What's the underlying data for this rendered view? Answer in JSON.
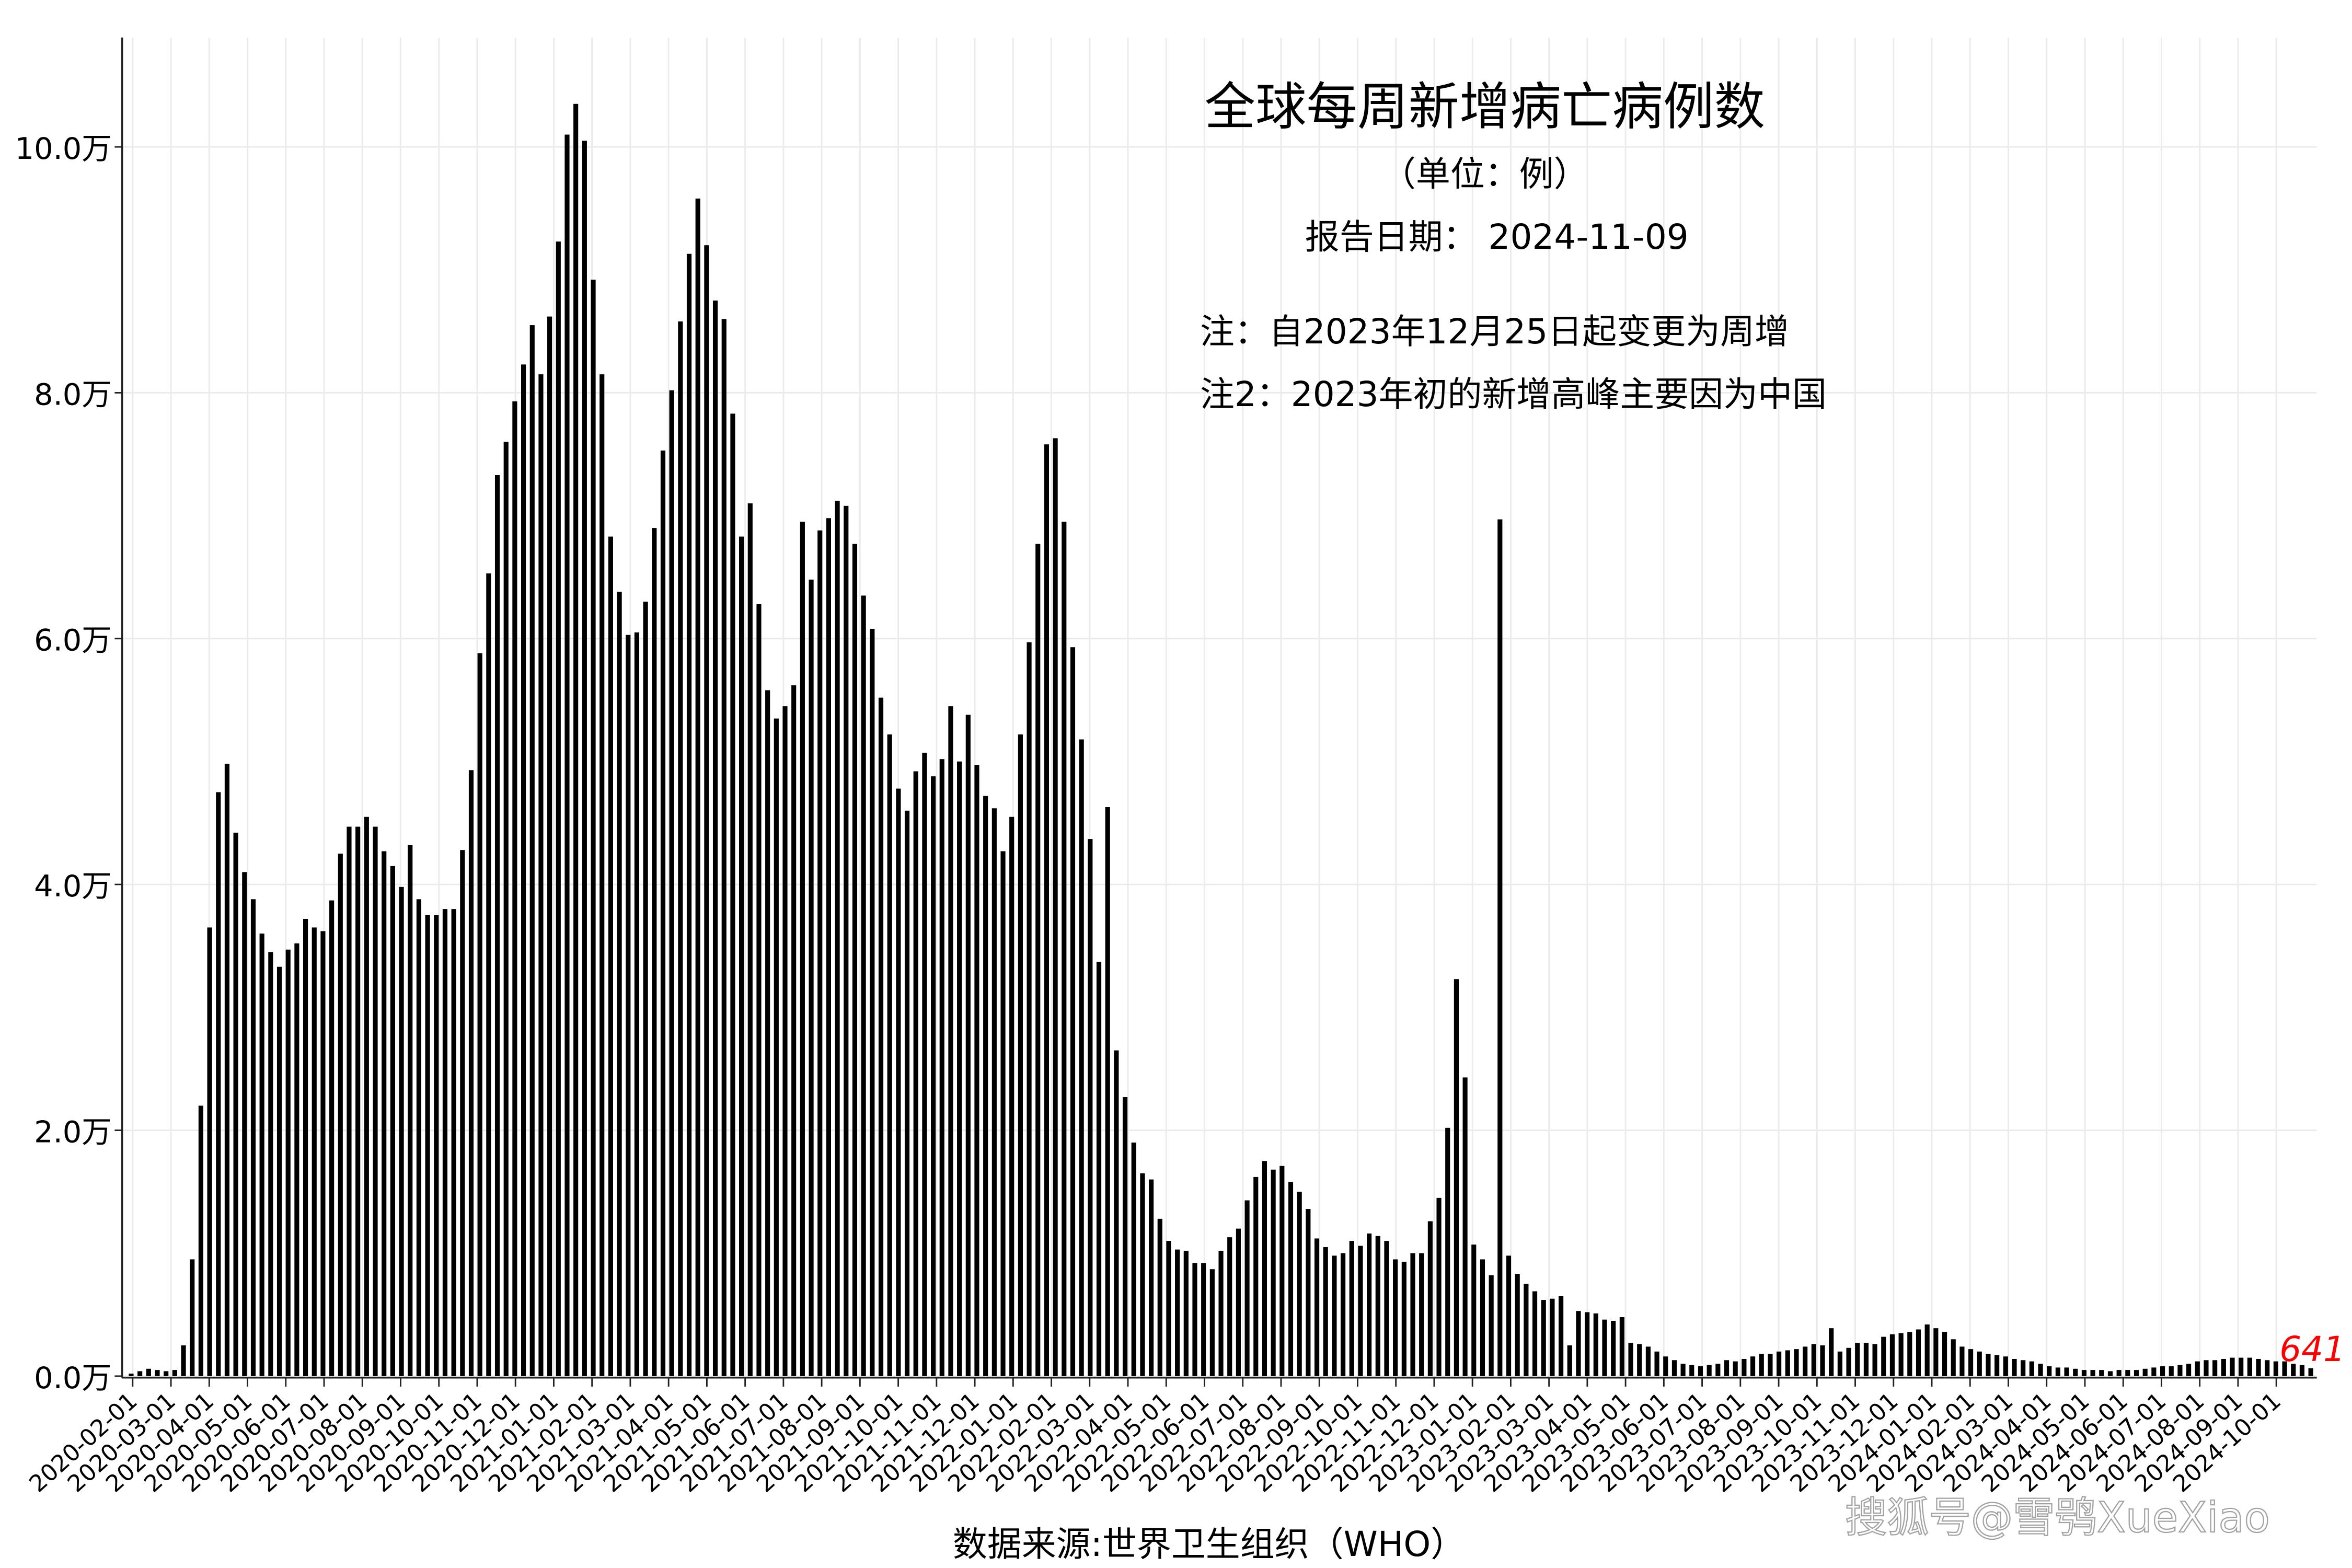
{
  "chart_data": {
    "type": "bar",
    "title": "全球每周新增病亡病例数",
    "subtitle": "（单位：例）",
    "report_date": "报告日期： 2024-11-09",
    "notes": [
      "注：自2023年12月25日起变更为周增",
      "注2：2023年初的新增高峰主要因为中国"
    ],
    "xlabel": "数据来源:世界卫生组织（WHO）",
    "ylabel": "",
    "unit": "万",
    "ylim": [
      0,
      10.9
    ],
    "yticks": [
      0,
      2,
      4,
      6,
      8,
      10
    ],
    "ytick_labels": [
      "0.0万",
      "2.0万",
      "4.0万",
      "6.0万",
      "8.0万",
      "10.0万"
    ],
    "grid": true,
    "bar_color": "#000000",
    "last_value_label": "641",
    "last_value_color": "#ff0000",
    "xtick_labels": [
      "2020-02-01",
      "2020-03-01",
      "2020-04-01",
      "2020-05-01",
      "2020-06-01",
      "2020-07-01",
      "2020-08-01",
      "2020-09-01",
      "2020-10-01",
      "2020-11-01",
      "2020-12-01",
      "2021-01-01",
      "2021-02-01",
      "2021-03-01",
      "2021-04-01",
      "2021-05-01",
      "2021-06-01",
      "2021-07-01",
      "2021-08-01",
      "2021-09-01",
      "2021-10-01",
      "2021-11-01",
      "2021-12-01",
      "2022-01-01",
      "2022-02-01",
      "2022-03-01",
      "2022-04-01",
      "2022-05-01",
      "2022-06-01",
      "2022-07-01",
      "2022-08-01",
      "2022-09-01",
      "2022-10-01",
      "2022-11-01",
      "2022-12-01",
      "2023-01-01",
      "2023-02-01",
      "2023-03-01",
      "2023-04-01",
      "2023-05-01",
      "2023-06-01",
      "2023-07-01",
      "2023-08-01",
      "2023-09-01",
      "2023-10-01",
      "2023-11-01",
      "2023-12-01",
      "2024-01-01",
      "2024-02-01",
      "2024-03-01",
      "2024-04-01",
      "2024-05-01",
      "2024-06-01",
      "2024-07-01",
      "2024-08-01",
      "2024-09-01",
      "2024-10-01"
    ],
    "values_wan": [
      0.02,
      0.04,
      0.06,
      0.05,
      0.04,
      0.05,
      0.25,
      0.95,
      2.2,
      3.65,
      4.75,
      4.98,
      4.42,
      4.1,
      3.88,
      3.6,
      3.45,
      3.33,
      3.47,
      3.52,
      3.72,
      3.65,
      3.62,
      3.87,
      4.25,
      4.47,
      4.47,
      4.55,
      4.47,
      4.27,
      4.15,
      3.98,
      4.32,
      3.88,
      3.75,
      3.75,
      3.8,
      3.8,
      4.28,
      4.93,
      5.88,
      6.53,
      7.33,
      7.6,
      7.93,
      8.23,
      8.55,
      8.15,
      8.62,
      9.23,
      10.1,
      10.35,
      10.05,
      8.92,
      8.15,
      6.83,
      6.38,
      6.03,
      6.05,
      6.3,
      6.9,
      7.53,
      8.02,
      8.58,
      9.13,
      9.58,
      9.2,
      8.75,
      8.6,
      7.83,
      6.83,
      7.1,
      6.28,
      5.58,
      5.35,
      5.45,
      5.62,
      6.95,
      6.48,
      6.88,
      6.98,
      7.12,
      7.08,
      6.77,
      6.35,
      6.08,
      5.52,
      5.22,
      4.78,
      4.6,
      4.92,
      5.07,
      4.88,
      5.02,
      5.45,
      5.0,
      5.38,
      4.97,
      4.72,
      4.62,
      4.27,
      4.55,
      5.22,
      5.97,
      6.77,
      7.58,
      7.63,
      6.95,
      5.93,
      5.18,
      4.37,
      3.37,
      4.63,
      2.65,
      2.27,
      1.9,
      1.65,
      1.6,
      1.28,
      1.1,
      1.03,
      1.02,
      0.92,
      0.92,
      0.87,
      1.02,
      1.13,
      1.2,
      1.43,
      1.62,
      1.75,
      1.68,
      1.71,
      1.58,
      1.5,
      1.36,
      1.12,
      1.05,
      0.98,
      1.0,
      1.1,
      1.06,
      1.16,
      1.14,
      1.1,
      0.95,
      0.93,
      1.0,
      1.0,
      1.26,
      1.45,
      2.02,
      3.23,
      2.43,
      1.07,
      0.95,
      0.82,
      6.97,
      0.98,
      0.83,
      0.75,
      0.69,
      0.62,
      0.63,
      0.65,
      0.25,
      0.53,
      0.52,
      0.51,
      0.46,
      0.45,
      0.48,
      0.27,
      0.26,
      0.24,
      0.2,
      0.16,
      0.13,
      0.1,
      0.09,
      0.08,
      0.09,
      0.1,
      0.13,
      0.12,
      0.14,
      0.16,
      0.18,
      0.18,
      0.2,
      0.21,
      0.22,
      0.24,
      0.26,
      0.25,
      0.39,
      0.2,
      0.23,
      0.27,
      0.27,
      0.26,
      0.32,
      0.34,
      0.35,
      0.36,
      0.38,
      0.42,
      0.39,
      0.36,
      0.3,
      0.24,
      0.22,
      0.2,
      0.18,
      0.17,
      0.16,
      0.14,
      0.13,
      0.12,
      0.1,
      0.08,
      0.07,
      0.07,
      0.06,
      0.05,
      0.05,
      0.05,
      0.04,
      0.05,
      0.05,
      0.05,
      0.06,
      0.07,
      0.08,
      0.08,
      0.09,
      0.1,
      0.12,
      0.13,
      0.13,
      0.14,
      0.15,
      0.15,
      0.15,
      0.14,
      0.13,
      0.12,
      0.12,
      0.1,
      0.09,
      0.0641
    ]
  },
  "watermark": "搜狐号@雪鸮XueXiao"
}
